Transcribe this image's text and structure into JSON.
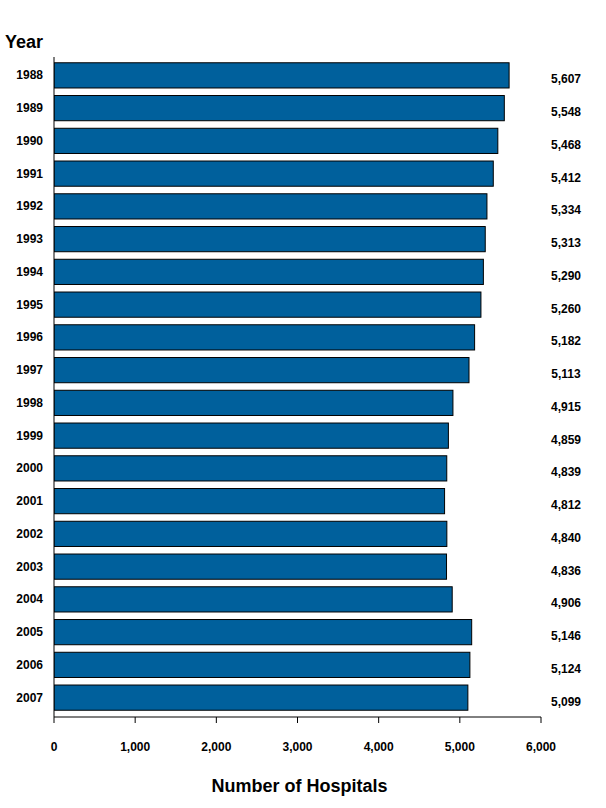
{
  "chart_data": {
    "type": "bar",
    "orientation": "horizontal",
    "y_label": "Year",
    "x_label": "Number of Hospitals",
    "categories": [
      "1988",
      "1989",
      "1990",
      "1991",
      "1992",
      "1993",
      "1994",
      "1995",
      "1996",
      "1997",
      "1998",
      "1999",
      "2000",
      "2001",
      "2002",
      "2003",
      "2004",
      "2005",
      "2006",
      "2007"
    ],
    "values": [
      5607,
      5548,
      5468,
      5412,
      5334,
      5313,
      5290,
      5260,
      5182,
      5113,
      4915,
      4859,
      4839,
      4812,
      4840,
      4836,
      4906,
      5146,
      5124,
      5099
    ],
    "value_labels": [
      "5,607",
      "5,548",
      "5,468",
      "5,412",
      "5,334",
      "5,313",
      "5,290",
      "5,260",
      "5,182",
      "5,113",
      "4,915",
      "4,859",
      "4,839",
      "4,812",
      "4,840",
      "4,836",
      "4,906",
      "5,146",
      "5,124",
      "5,099"
    ],
    "data_labels": true,
    "color": "#00609c",
    "grid": false,
    "xlim": [
      0,
      6000
    ],
    "xticks": [
      0,
      {
        "value": 1000,
        "label": "1,000"
      },
      {
        "value": 2000,
        "label": "2,000"
      },
      {
        "value": 3000,
        "label": "3,000"
      },
      {
        "value": 4000,
        "label": "4,000"
      },
      {
        "value": 5000,
        "label": "5,000"
      },
      {
        "value": 6000,
        "label": "6,000"
      }
    ]
  }
}
